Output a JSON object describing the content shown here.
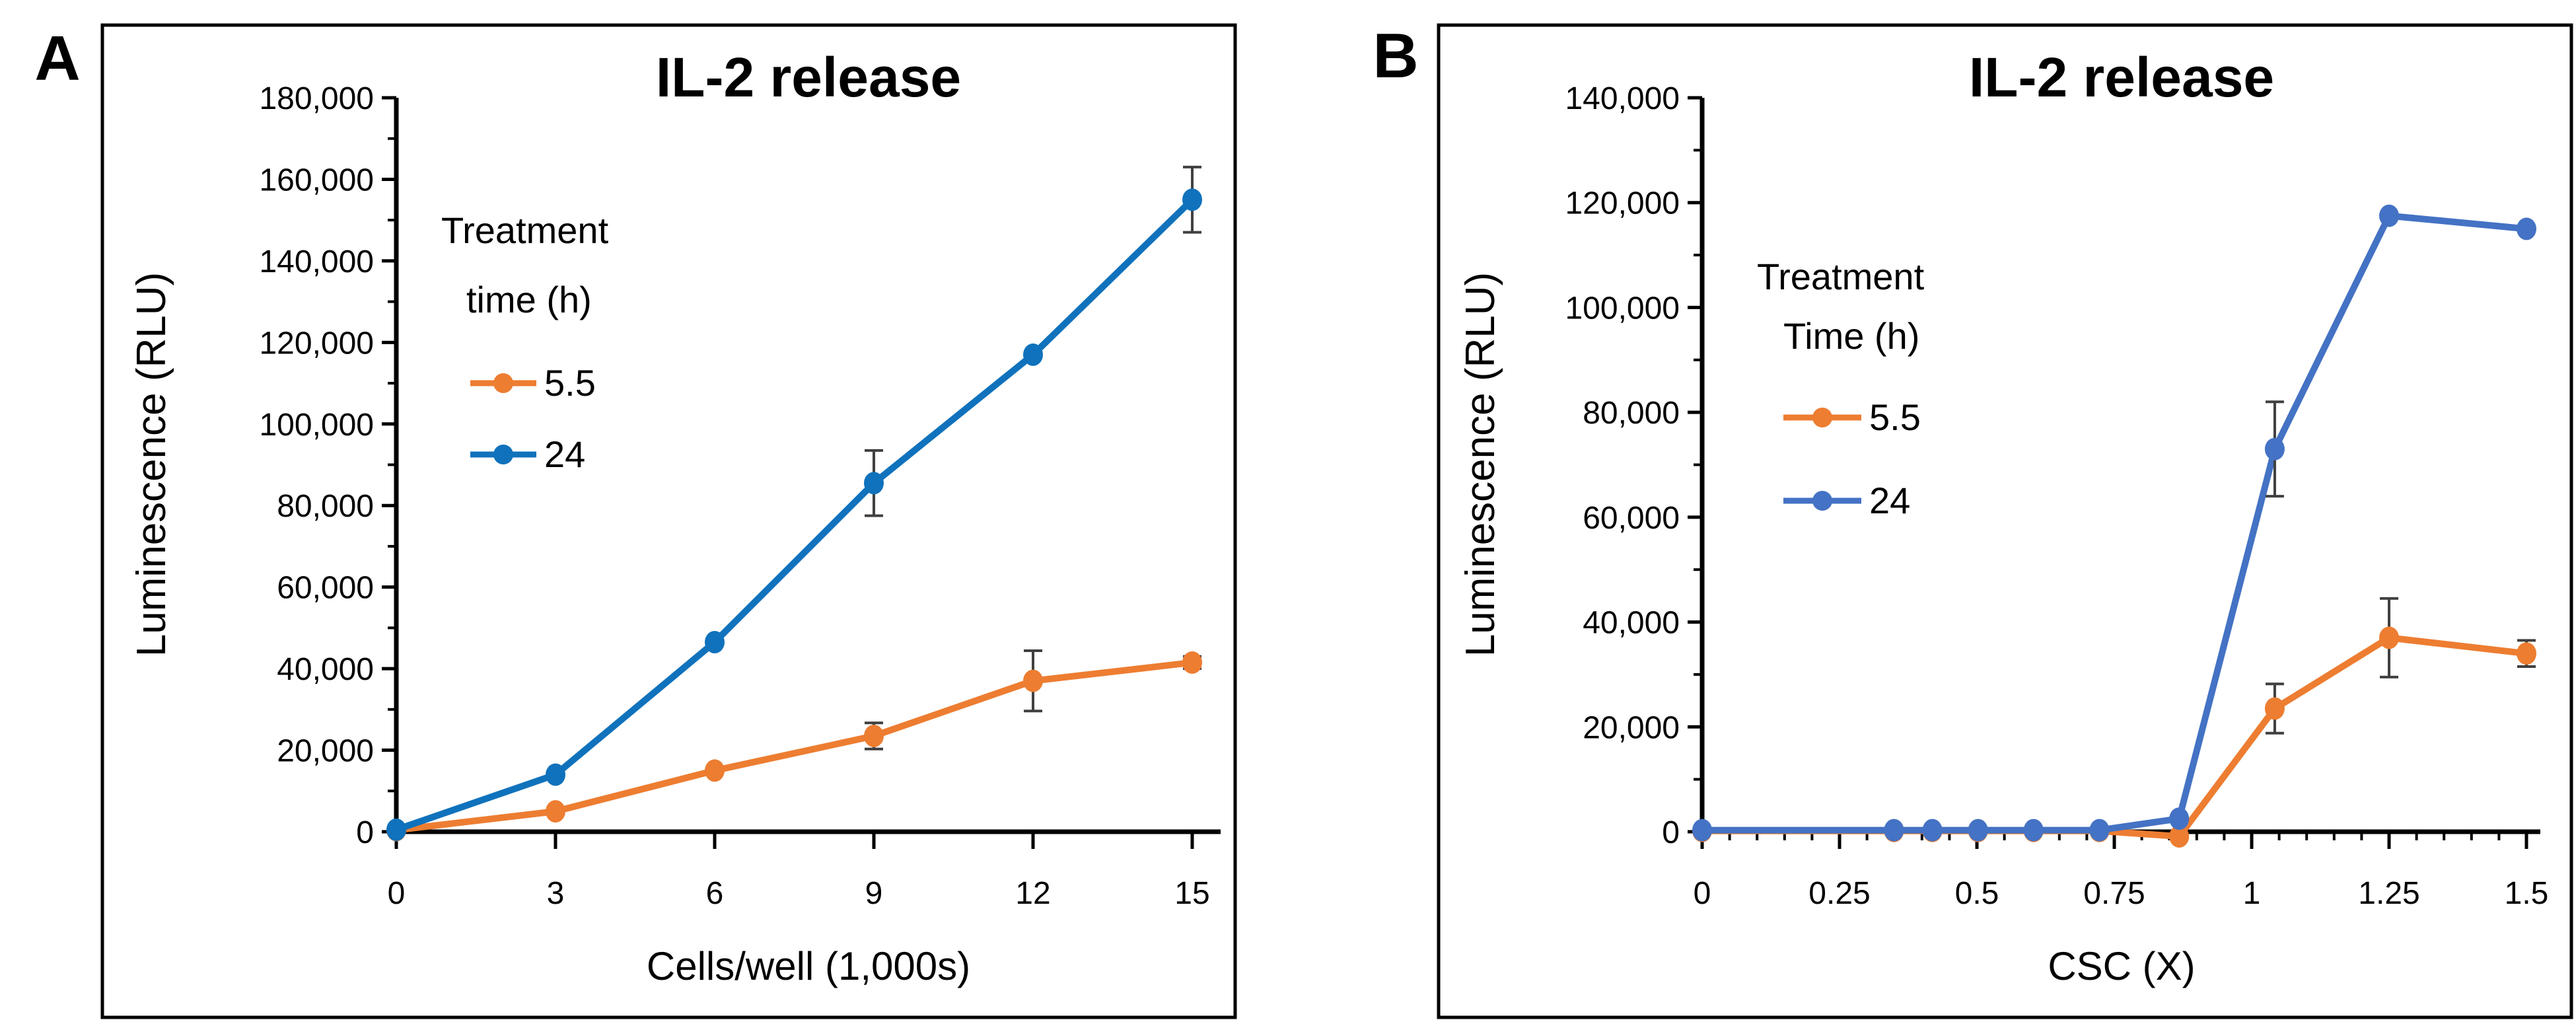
{
  "figure": {
    "background": "#ffffff",
    "border_color": "#000000",
    "error_bar_color": "#404040",
    "text_color": "#000000"
  },
  "chart_data": [
    {
      "panel_label": "A",
      "type": "line",
      "title": "IL-2 release",
      "xlabel": "Cells/well (1,000s)",
      "ylabel": "Luminescence (RLU)",
      "xlim": [
        0,
        15
      ],
      "ylim": [
        0,
        180000
      ],
      "x_axis": {
        "label": "Cells/well (1,000s)",
        "tick_values": [
          0,
          3,
          6,
          9,
          12,
          15
        ],
        "tick_labels": [
          "0",
          "3",
          "6",
          "9",
          "12",
          "15"
        ],
        "minor_step": null
      },
      "y_axis": {
        "label": "Luminescence (RLU)",
        "max": 180000,
        "major_step": 20000,
        "minor_step": 10000,
        "tick_labels": [
          "0",
          "20,000",
          "40,000",
          "60,000",
          "80,000",
          "100,000",
          "120,000",
          "140,000",
          "160,000",
          "180,000"
        ]
      },
      "legend": {
        "title_lines": [
          "Treatment",
          "time (h)"
        ],
        "entries": [
          "5.5",
          "24"
        ]
      },
      "series": [
        {
          "name": "5.5",
          "color": "#ED7D31",
          "x": [
            0,
            3,
            6,
            9,
            12,
            15
          ],
          "y": [
            400,
            5000,
            15000,
            23500,
            37000,
            41500
          ],
          "yerr": [
            0,
            0,
            0,
            3200,
            7400,
            1500
          ]
        },
        {
          "name": "24",
          "color": "#1072BC",
          "x": [
            0,
            3,
            6,
            9,
            12,
            15
          ],
          "y": [
            500,
            14000,
            46500,
            85500,
            117000,
            155000
          ],
          "yerr": [
            0,
            0,
            0,
            8000,
            0,
            8000
          ]
        }
      ]
    },
    {
      "panel_label": "B",
      "type": "line",
      "title": "IL-2 release",
      "xlabel": "CSC (X)",
      "ylabel": "Luminescence (RLU)",
      "xlim": [
        0,
        1.5
      ],
      "ylim": [
        0,
        140000
      ],
      "x_axis": {
        "label": "CSC (X)",
        "tick_values": [
          0,
          0.25,
          0.5,
          0.75,
          1,
          1.25,
          1.5
        ],
        "tick_labels": [
          "0",
          "0.25",
          "0.5",
          "0.75",
          "1",
          "1.25",
          "1.5"
        ],
        "minor_step": 0.05
      },
      "y_axis": {
        "label": "Luminescence (RLU)",
        "max": 140000,
        "major_step": 20000,
        "minor_step": 10000,
        "tick_labels": [
          "0",
          "20,000",
          "40,000",
          "60,000",
          "80,000",
          "100,000",
          "120,000",
          "140,000"
        ]
      },
      "legend": {
        "title_lines": [
          "Treatment",
          "Time (h)"
        ],
        "entries": [
          "5.5",
          "24"
        ]
      },
      "series": [
        {
          "name": "5.5",
          "color": "#ED7D31",
          "x": [
            0,
            0.349,
            0.419,
            0.502,
            0.603,
            0.723,
            0.868,
            1.042,
            1.25,
            1.5
          ],
          "y": [
            150,
            150,
            150,
            150,
            150,
            150,
            -900,
            23500,
            37000,
            34000
          ],
          "yerr": [
            0,
            0,
            0,
            0,
            0,
            0,
            0,
            4700,
            7500,
            2500
          ]
        },
        {
          "name": "24",
          "color": "#4472C4",
          "x": [
            0,
            0.349,
            0.419,
            0.502,
            0.603,
            0.723,
            0.868,
            1.042,
            1.25,
            1.5
          ],
          "y": [
            300,
            300,
            300,
            300,
            300,
            300,
            2500,
            73000,
            117500,
            115000
          ],
          "yerr": [
            0,
            0,
            0,
            0,
            0,
            0,
            0,
            9000,
            0,
            0
          ]
        }
      ]
    }
  ]
}
